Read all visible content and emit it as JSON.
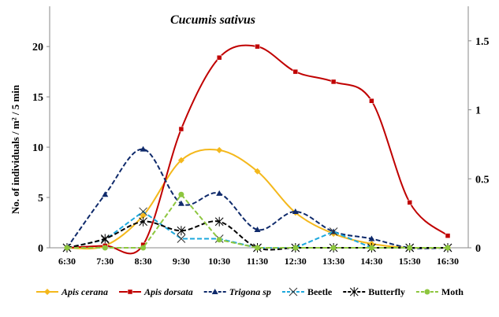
{
  "chart_data": {
    "type": "line",
    "title": "Cucumis sativus",
    "ylabel": "No. of individuals  / m² / 5 min",
    "xlabel": "",
    "x": [
      "6:30",
      "7:30",
      "8:30",
      "9:30",
      "10:30",
      "11:30",
      "12:30",
      "13:30",
      "14:30",
      "15:30",
      "16:30"
    ],
    "ylim": [
      0,
      24
    ],
    "yticks": [
      "0",
      "5",
      "10",
      "15",
      "20"
    ],
    "y2lim": [
      0,
      1.75
    ],
    "y2ticks": [
      "0",
      "0.5",
      "1",
      "1.5"
    ],
    "legend_position": "bottom",
    "series": [
      {
        "name": "Apis cerana",
        "color": "#f4b81c",
        "dash": false,
        "marker": "diamond",
        "smooth": true,
        "italic": true,
        "values": [
          0,
          0.2,
          3.2,
          8.7,
          9.7,
          7.6,
          3.5,
          1.4,
          0.4,
          0,
          0
        ]
      },
      {
        "name": "Apis dorsata",
        "color": "#c00000",
        "dash": false,
        "marker": "square",
        "smooth": true,
        "italic": true,
        "values": [
          0,
          0.2,
          0.3,
          11.8,
          18.9,
          20,
          17.5,
          16.5,
          14.6,
          4.5,
          1.2
        ]
      },
      {
        "name": "Trigona sp",
        "color": "#0f2a6b",
        "dash": true,
        "marker": "triangle",
        "smooth": true,
        "italic": true,
        "values": [
          0,
          5.3,
          9.8,
          4.4,
          5.4,
          1.8,
          3.6,
          1.6,
          0.9,
          0,
          0
        ]
      },
      {
        "name": "Beetle",
        "color": "#1ca8dd",
        "dash": true,
        "marker": "x",
        "smooth": false,
        "italic": false,
        "values": [
          0,
          0.8,
          3.6,
          0.9,
          0.9,
          0,
          0,
          1.6,
          0,
          0,
          0
        ]
      },
      {
        "name": "Butterfly",
        "color": "#000000",
        "dash": true,
        "marker": "star",
        "smooth": true,
        "italic": false,
        "values": [
          0,
          0.9,
          2.6,
          1.7,
          2.6,
          0,
          0,
          0,
          0,
          0,
          0
        ]
      },
      {
        "name": "Moth",
        "color": "#8dc63f",
        "dash": true,
        "marker": "circle",
        "smooth": false,
        "italic": false,
        "values": [
          0,
          0,
          0,
          5.3,
          0.8,
          0,
          0,
          0,
          0,
          0,
          0
        ]
      }
    ]
  }
}
